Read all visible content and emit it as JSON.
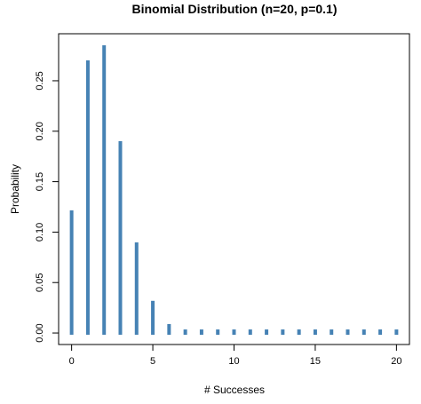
{
  "chart_data": {
    "type": "bar",
    "title": "Binomial Distribution (n=20, p=0.1)",
    "xlabel": "# Successes",
    "ylabel": "Probability",
    "x": [
      0,
      1,
      2,
      3,
      4,
      5,
      6,
      7,
      8,
      9,
      10,
      11,
      12,
      13,
      14,
      15,
      16,
      17,
      18,
      19,
      20
    ],
    "values": [
      0.1216,
      0.2702,
      0.2852,
      0.1901,
      0.0898,
      0.0319,
      0.0089,
      0.002,
      0.0004,
      0.0001,
      0.0,
      0.0,
      0.0,
      0.0,
      0.0,
      0.0,
      0.0,
      0.0,
      0.0,
      0.0,
      0.0
    ],
    "xlim": [
      -0.8,
      20.8
    ],
    "ylim": [
      -0.0114,
      0.2966
    ],
    "xticks": [
      "0",
      "5",
      "10",
      "15",
      "20"
    ],
    "xtick_values": [
      0,
      5,
      10,
      15,
      20
    ],
    "yticks": [
      "0.00",
      "0.05",
      "0.10",
      "0.15",
      "0.20",
      "0.25"
    ],
    "ytick_values": [
      0,
      0.05,
      0.1,
      0.15,
      0.2,
      0.25
    ],
    "grid": false,
    "bar_color": "#4682B4"
  }
}
